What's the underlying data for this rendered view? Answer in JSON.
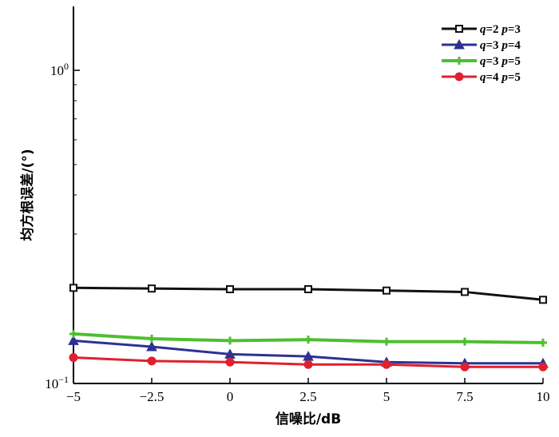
{
  "chart_data": {
    "type": "line",
    "xlabel": "信噪比/dB",
    "ylabel": "均方根误差/(°)",
    "x": [
      -5,
      -2.5,
      0,
      2.5,
      5,
      7.5,
      10
    ],
    "x_tick_labels": [
      "−5",
      "−2.5",
      "0",
      "2.5",
      "5",
      "7.5",
      "10"
    ],
    "xlim": [
      -5,
      10
    ],
    "y_scale": "log",
    "ylim": [
      0.1,
      1.6
    ],
    "y_ticks": [
      {
        "value": 1,
        "base": "10",
        "exp": "0"
      },
      {
        "value": 0.1,
        "base": "10",
        "exp": "−1"
      }
    ],
    "grid": false,
    "legend_position": "top-right",
    "series": [
      {
        "q": "q",
        "p": "p",
        "name": "=2 =3",
        "legend": [
          "q",
          "=2 ",
          "p",
          "=3"
        ],
        "color": "#111111",
        "marker": "square",
        "values": [
          0.202,
          0.201,
          0.2,
          0.2,
          0.198,
          0.196,
          0.185
        ]
      },
      {
        "name": "=3 =4",
        "legend": [
          "q",
          "=3 ",
          "p",
          "=4"
        ],
        "color": "#2e3192",
        "marker": "triangle",
        "values": [
          0.137,
          0.131,
          0.124,
          0.122,
          0.117,
          0.116,
          0.116
        ]
      },
      {
        "name": "=3 =5",
        "legend": [
          "q",
          "=3 ",
          "p",
          "=5"
        ],
        "color": "#4dbf30",
        "marker": "plus",
        "values": [
          0.144,
          0.139,
          0.137,
          0.138,
          0.136,
          0.136,
          0.135
        ]
      },
      {
        "name": "=4 =5",
        "legend": [
          "q",
          "=4 ",
          "p",
          "=5"
        ],
        "color": "#e0202e",
        "marker": "circle",
        "values": [
          0.121,
          0.118,
          0.117,
          0.115,
          0.115,
          0.113,
          0.113
        ]
      }
    ]
  }
}
